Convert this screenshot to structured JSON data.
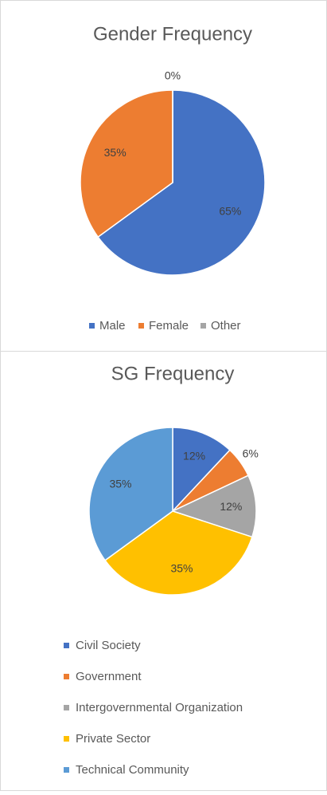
{
  "chart_data": [
    {
      "type": "pie",
      "title": "Gender Frequency",
      "categories": [
        "Male",
        "Female",
        "Other"
      ],
      "values": [
        65,
        35,
        0
      ],
      "value_labels": [
        "65%",
        "35%",
        "0%"
      ],
      "colors": [
        "#4472c4",
        "#ed7d31",
        "#a5a5a5"
      ],
      "legend": "bottom",
      "legend_layout": "horizontal"
    },
    {
      "type": "pie",
      "title": "SG Frequency",
      "categories": [
        "Civil Society",
        "Government",
        "Intergovernmental Organization",
        "Private Sector",
        "Technical Community"
      ],
      "values": [
        12,
        6,
        12,
        35,
        35
      ],
      "value_labels": [
        "12%",
        "6%",
        "12%",
        "35%",
        "35%"
      ],
      "colors": [
        "#4472c4",
        "#ed7d31",
        "#a5a5a5",
        "#ffc000",
        "#5b9bd5"
      ],
      "legend": "bottom",
      "legend_layout": "vertical"
    }
  ]
}
